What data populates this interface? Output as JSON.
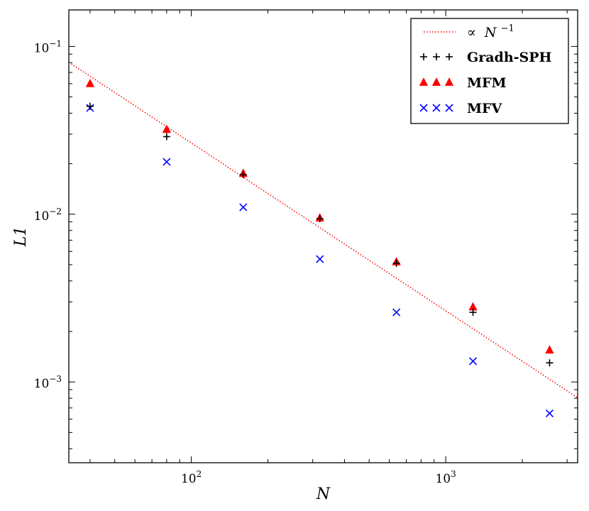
{
  "chart_data": {
    "type": "scatter",
    "scale": "log-log",
    "xlabel": "N",
    "ylabel": "L1",
    "xlim": [
      33,
      3300
    ],
    "ylim": [
      0.00033,
      0.165
    ],
    "x_ticks": [
      {
        "value": 100,
        "base": "10",
        "exp": "2"
      },
      {
        "value": 1000,
        "base": "10",
        "exp": "3"
      }
    ],
    "y_ticks": [
      {
        "value": 0.1,
        "base": "10",
        "exp": "−1"
      },
      {
        "value": 0.01,
        "base": "10",
        "exp": "−2"
      },
      {
        "value": 0.001,
        "base": "10",
        "exp": "−3"
      }
    ],
    "reference_line": {
      "label_prefix": "∝",
      "label_var": "N",
      "label_exp": "−1",
      "color": "#ff0000",
      "style": "dotted",
      "x": [
        33,
        3300
      ],
      "y": [
        0.0805,
        0.000805
      ]
    },
    "series": [
      {
        "name": "Gradh-SPH",
        "marker": "plus",
        "color": "#000000",
        "x": [
          40,
          80,
          160,
          320,
          640,
          1280,
          2560
        ],
        "y": [
          0.044,
          0.029,
          0.0172,
          0.0094,
          0.0051,
          0.0026,
          0.0013
        ]
      },
      {
        "name": "MFM",
        "marker": "triangle",
        "color": "#ff0000",
        "x": [
          40,
          80,
          160,
          320,
          640,
          1280,
          2560
        ],
        "y": [
          0.06,
          0.032,
          0.0175,
          0.0095,
          0.0052,
          0.0028,
          0.00155
        ]
      },
      {
        "name": "MFV",
        "marker": "x",
        "color": "#0000ff",
        "x": [
          40,
          80,
          160,
          320,
          640,
          1280,
          2560
        ],
        "y": [
          0.043,
          0.0205,
          0.011,
          0.0054,
          0.0026,
          0.00133,
          0.00065
        ]
      }
    ],
    "legend_position": "top-right"
  }
}
